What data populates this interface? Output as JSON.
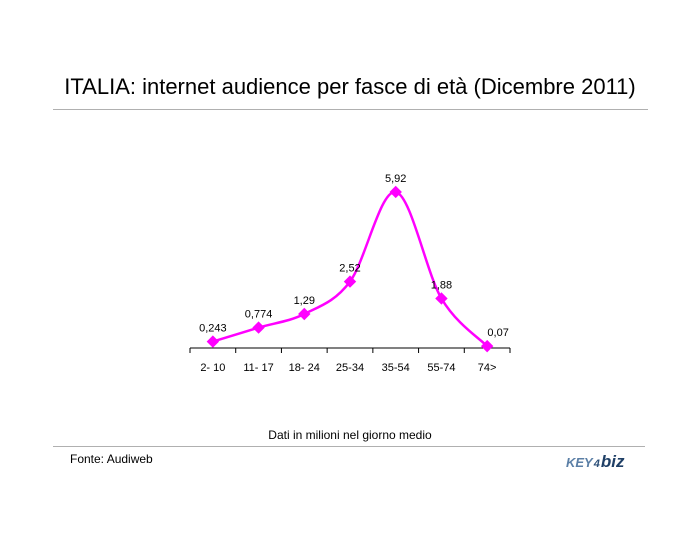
{
  "title": "ITALIA: internet audience per fasce di età (Dicembre 2011)",
  "note": "Dati in milioni nel giorno medio",
  "source": "Fonte: Audiweb",
  "logo": {
    "key": "KEY",
    "four": "4",
    "biz": "biz"
  },
  "colors": {
    "series": "#ff00ff",
    "axis": "#000000",
    "rule": "#b0b0b0"
  },
  "chart_data": {
    "type": "line",
    "title": "",
    "xlabel": "",
    "ylabel": "",
    "categories": [
      "2- 10",
      "11- 17",
      "18- 24",
      "25-34",
      "35-54",
      "55-74",
      "74>"
    ],
    "series": [
      {
        "values": [
          0.243,
          0.774,
          1.29,
          2.52,
          5.92,
          1.88,
          0.07
        ],
        "labels": [
          "0,243",
          "0,774",
          "1,29",
          "2,52",
          "5,92",
          "1,88",
          "0,07"
        ]
      }
    ],
    "ylim": [
      0,
      6.64
    ],
    "grid": false,
    "legend": "none",
    "smooth": true,
    "marker": "diamond"
  }
}
